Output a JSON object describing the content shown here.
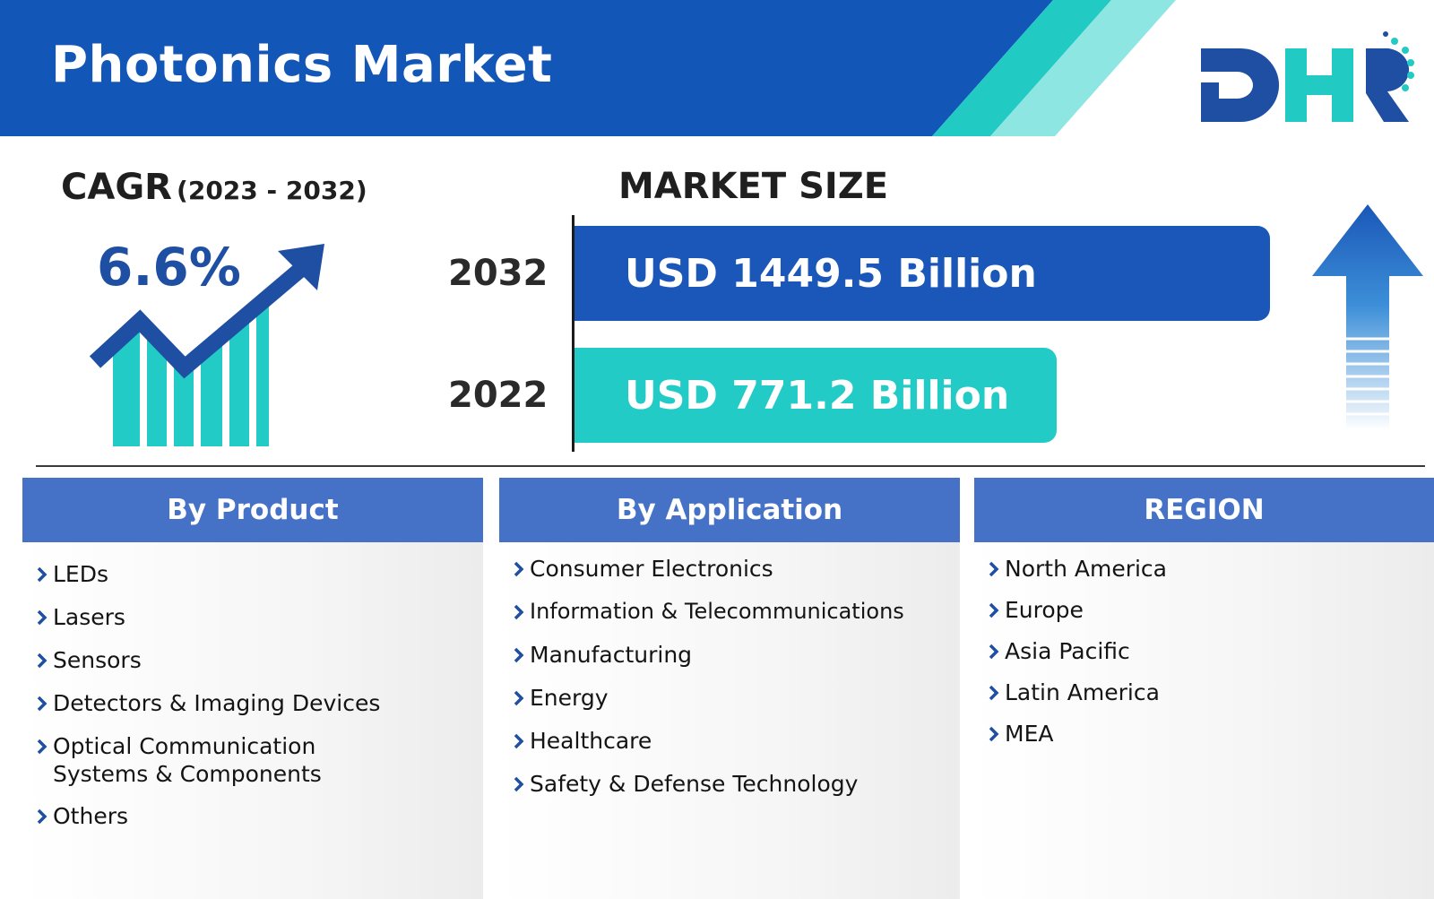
{
  "header": {
    "title": "Photonics Market",
    "brand": "DHR",
    "colors": {
      "band": "#1257b8",
      "stripe_teal": "#21cbc4",
      "stripe_light": "#8ee6e2"
    }
  },
  "cagr": {
    "label": "CAGR",
    "period": "(2023 - 2032)",
    "value": "6.6%",
    "icon": "growth-chart-icon"
  },
  "market_size": {
    "heading": "MARKET SIZE",
    "rows": [
      {
        "year": "2032",
        "value": "USD 1449.5 Billion",
        "color": "#1a57b8"
      },
      {
        "year": "2022",
        "value": "USD 771.2 Billion",
        "color": "#22cbc6"
      }
    ],
    "icon": "up-arrow-icon"
  },
  "segments": [
    {
      "title": "By Product",
      "items": [
        "LEDs",
        "Lasers",
        "Sensors",
        "Detectors & Imaging Devices",
        "Optical Communication\nSystems & Components",
        "Others"
      ]
    },
    {
      "title": "By Application",
      "items": [
        "Consumer Electronics",
        "Information & Telecommunications",
        "Manufacturing",
        "Energy",
        "Healthcare",
        "Safety & Defense Technology"
      ]
    },
    {
      "title": "REGION",
      "items": [
        "North America",
        "Europe",
        "Asia Pacific",
        "Latin America",
        "MEA"
      ]
    }
  ],
  "colors": {
    "accent_blue": "#4572c6",
    "dark_blue": "#1e4fa3",
    "teal": "#22cbc6"
  }
}
